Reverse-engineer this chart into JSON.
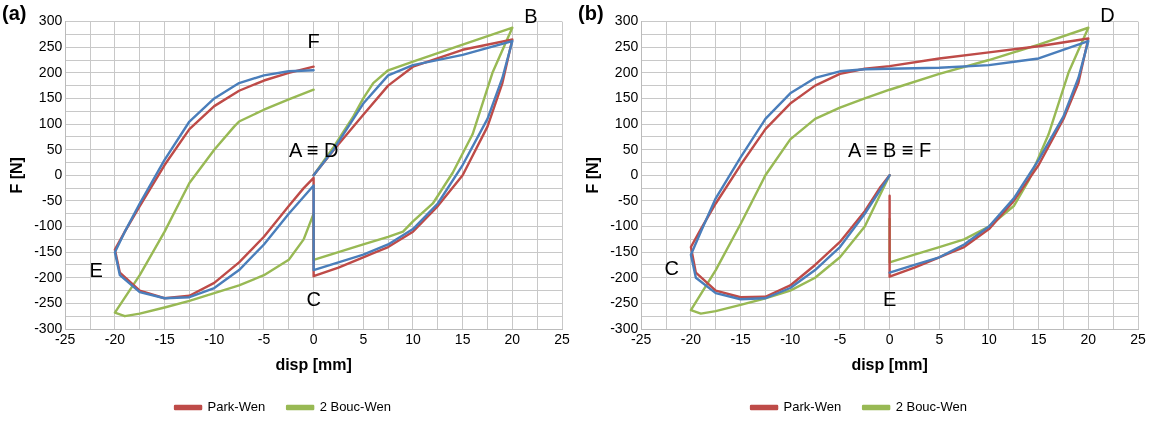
{
  "chart_data": [
    {
      "type": "line",
      "title": "(a)",
      "xlabel": "disp [mm]",
      "ylabel": "F [N]",
      "xlim": [
        -25,
        25
      ],
      "ylim": [
        -300,
        300
      ],
      "xticks": [
        -25,
        {
          "value": -22.5,
          "label": null
        },
        -20,
        {
          "value": -17.5,
          "label": null
        },
        -15,
        {
          "value": -12.5,
          "label": null
        },
        -10,
        {
          "value": -7.5,
          "label": null
        },
        -5,
        {
          "value": -2.5,
          "label": null
        },
        0,
        {
          "value": 2.5,
          "label": null
        },
        5,
        {
          "value": 7.5,
          "label": null
        },
        10,
        {
          "value": 12.5,
          "label": null
        },
        15,
        {
          "value": 17.5,
          "label": null
        },
        20,
        {
          "value": 22.5,
          "label": null
        },
        25
      ],
      "yticks": [
        -300,
        {
          "value": -275,
          "label": null
        },
        -250,
        {
          "value": -225,
          "label": null
        },
        -200,
        {
          "value": -175,
          "label": null
        },
        -150,
        {
          "value": -125,
          "label": null
        },
        -100,
        {
          "value": -75,
          "label": null
        },
        -50,
        {
          "value": -25,
          "label": null
        },
        0,
        {
          "value": 25,
          "label": null
        },
        50,
        {
          "value": 75,
          "label": null
        },
        100,
        {
          "value": 125,
          "label": null
        },
        150,
        {
          "value": 175,
          "label": null
        },
        200,
        {
          "value": 225,
          "label": null
        },
        250,
        {
          "value": 275,
          "label": null
        },
        300
      ],
      "grid": true,
      "legend": "bottom",
      "marker": "none",
      "line_style": "solid",
      "annotations": [
        {
          "text": "F",
          "x": 0,
          "y": 212
        },
        {
          "text": "B",
          "x": 20,
          "y": 265
        },
        {
          "text": "A ≡ D",
          "x": 0,
          "y": 0
        },
        {
          "text": "C",
          "x": 0,
          "y": -197
        },
        {
          "text": "E",
          "x": -20,
          "y": -145
        }
      ],
      "series": [
        {
          "color": "#4a7ebb",
          "x": [
            0,
            2,
            4,
            5,
            7.5,
            10,
            15,
            20,
            19,
            17.5,
            15,
            12.5,
            10,
            7.5,
            5,
            2.5,
            0,
            0,
            -2.5,
            -5,
            -7.5,
            -10,
            -12.5,
            -15,
            -17.5,
            -19.5,
            -20,
            -19,
            -17.5,
            -15,
            -12.5,
            -10,
            -7.5,
            -5,
            -2.5,
            0
          ],
          "values": [
            0,
            50,
            110,
            140,
            195,
            215,
            235,
            262,
            190,
            110,
            20,
            -55,
            -105,
            -135,
            -155,
            -170,
            -185,
            -20,
            -75,
            -135,
            -185,
            -220,
            -238,
            -240,
            -228,
            -195,
            -150,
            -110,
            -55,
            30,
            105,
            150,
            180,
            195,
            203,
            205
          ]
        },
        {
          "name": "Park-Wen",
          "color": "#be4b48",
          "x": [
            0,
            2,
            5,
            7.5,
            10,
            15,
            20,
            19,
            17.5,
            15,
            12.5,
            10,
            7.5,
            5,
            2.5,
            0,
            0,
            -1,
            -2.5,
            -5,
            -7.5,
            -10,
            -12.5,
            -15,
            -17.5,
            -19.5,
            -20,
            -19,
            -17.5,
            -15,
            -12.5,
            -10,
            -7.5,
            -5,
            -2.5,
            0
          ],
          "values": [
            0,
            49,
            118,
            175,
            212,
            245,
            265,
            180,
            95,
            0,
            -60,
            -110,
            -140,
            -160,
            -180,
            -197,
            -5,
            -25,
            -60,
            -120,
            -170,
            -210,
            -235,
            -240,
            -225,
            -190,
            -145,
            -110,
            -60,
            20,
            90,
            135,
            165,
            185,
            200,
            212
          ]
        },
        {
          "name": "2 Bouc-Wen",
          "color": "#98b954",
          "x": [
            0,
            2,
            4,
            5,
            6,
            7.5,
            10,
            15,
            20,
            18,
            16,
            14,
            12,
            10,
            9,
            7.5,
            5,
            2.5,
            0,
            0,
            -1,
            -2.5,
            -5,
            -7.5,
            -10,
            -12.5,
            -15,
            -17.5,
            -19,
            -20,
            -17.5,
            -15,
            -12.5,
            -10,
            -8,
            -7.5,
            -5,
            -2.5,
            0
          ],
          "values": [
            0,
            55,
            115,
            150,
            180,
            205,
            222,
            255,
            288,
            200,
            80,
            5,
            -55,
            -90,
            -110,
            -120,
            -135,
            -150,
            -165,
            -75,
            -125,
            -165,
            -195,
            -215,
            -230,
            -245,
            -258,
            -270,
            -275,
            -268,
            -195,
            -110,
            -15,
            50,
            95,
            105,
            128,
            148,
            167
          ]
        }
      ]
    },
    {
      "type": "line",
      "title": "(b)",
      "xlabel": "disp [mm]",
      "ylabel": "F [N]",
      "xlim": [
        -25,
        25
      ],
      "ylim": [
        -300,
        300
      ],
      "xticks": [
        -25,
        {
          "value": -22.5,
          "label": null
        },
        -20,
        {
          "value": -17.5,
          "label": null
        },
        -15,
        {
          "value": -12.5,
          "label": null
        },
        -10,
        {
          "value": -7.5,
          "label": null
        },
        -5,
        {
          "value": -2.5,
          "label": null
        },
        0,
        {
          "value": 2.5,
          "label": null
        },
        5,
        {
          "value": 7.5,
          "label": null
        },
        10,
        {
          "value": 12.5,
          "label": null
        },
        15,
        {
          "value": 17.5,
          "label": null
        },
        20,
        {
          "value": 22.5,
          "label": null
        },
        25
      ],
      "yticks": [
        -300,
        {
          "value": -275,
          "label": null
        },
        -250,
        {
          "value": -225,
          "label": null
        },
        -200,
        {
          "value": -175,
          "label": null
        },
        -150,
        {
          "value": -125,
          "label": null
        },
        -100,
        {
          "value": -75,
          "label": null
        },
        -50,
        {
          "value": -25,
          "label": null
        },
        0,
        {
          "value": 25,
          "label": null
        },
        50,
        {
          "value": 75,
          "label": null
        },
        100,
        {
          "value": 125,
          "label": null
        },
        150,
        {
          "value": 175,
          "label": null
        },
        200,
        {
          "value": 225,
          "label": null
        },
        250,
        {
          "value": 275,
          "label": null
        },
        300
      ],
      "grid": true,
      "legend": "bottom",
      "marker": "none",
      "line_style": "solid",
      "annotations": [
        {
          "text": "D",
          "x": 20,
          "y": 267
        },
        {
          "text": "A ≡ B ≡ F",
          "x": 0,
          "y": 0
        },
        {
          "text": "C",
          "x": -20,
          "y": -140
        },
        {
          "text": "E",
          "x": 0,
          "y": -198
        }
      ],
      "series": [
        {
          "color": "#4a7ebb",
          "x": [
            0,
            -2.5,
            -5,
            -7.5,
            -10,
            -12.5,
            -15,
            -17.5,
            -19.5,
            -20,
            -19,
            -17.5,
            -15,
            -12.5,
            -10,
            -7.5,
            -5,
            -2.5,
            0,
            5,
            10,
            15,
            20,
            19,
            17.5,
            15,
            12.5,
            10,
            7.5,
            5,
            2.5,
            0
          ],
          "values": [
            0,
            -75,
            -140,
            -185,
            -220,
            -240,
            -242,
            -230,
            -200,
            -155,
            -110,
            -45,
            35,
            110,
            160,
            190,
            203,
            207,
            208,
            210,
            215,
            228,
            262,
            190,
            115,
            30,
            -45,
            -100,
            -135,
            -160,
            -175,
            -190
          ]
        },
        {
          "name": "Park-Wen",
          "color": "#be4b48",
          "x": [
            0,
            -1,
            -2.5,
            -5,
            -7.5,
            -10,
            -12.5,
            -15,
            -17.5,
            -19.5,
            -20,
            -19,
            -17.5,
            -15,
            -12.5,
            -10,
            -7.5,
            -5,
            -2.5,
            0,
            5,
            10,
            15,
            20,
            19,
            17.5,
            15,
            12.5,
            10,
            7.5,
            5,
            2.5,
            0,
            0
          ],
          "values": [
            0,
            -25,
            -70,
            -130,
            -175,
            -215,
            -237,
            -238,
            -225,
            -190,
            -140,
            -105,
            -55,
            20,
            90,
            140,
            175,
            198,
            208,
            213,
            228,
            240,
            252,
            267,
            180,
            110,
            20,
            -50,
            -105,
            -140,
            -160,
            -180,
            -198,
            -40
          ]
        },
        {
          "name": "2 Bouc-Wen",
          "color": "#98b954",
          "x": [
            0,
            -1,
            -2.5,
            -5,
            -7.5,
            -10,
            -12.5,
            -15,
            -17.5,
            -19,
            -20,
            -17.5,
            -15,
            -12.5,
            -10,
            -7.5,
            -5,
            -2.5,
            0,
            5,
            10,
            15,
            20,
            18,
            16,
            14,
            12.5,
            10,
            7.5,
            5,
            2.5,
            0,
            0
          ],
          "values": [
            0,
            -40,
            -100,
            -160,
            -200,
            -225,
            -240,
            -253,
            -265,
            -270,
            -263,
            -185,
            -95,
            0,
            70,
            110,
            132,
            150,
            167,
            198,
            225,
            255,
            288,
            200,
            80,
            -10,
            -60,
            -100,
            -125,
            -140,
            -155,
            -170,
            -85
          ]
        }
      ]
    }
  ]
}
